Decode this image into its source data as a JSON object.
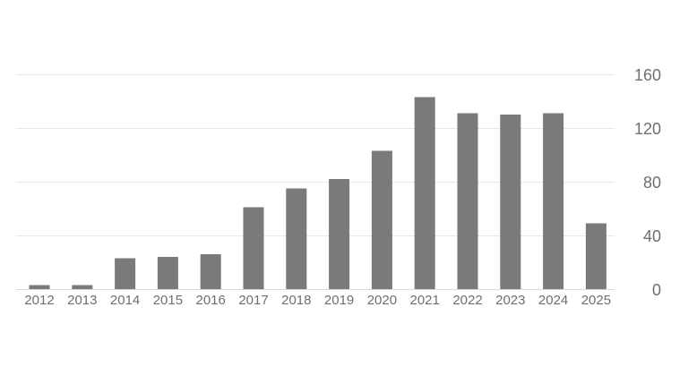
{
  "chart_data": {
    "type": "bar",
    "title": "",
    "xlabel": "",
    "ylabel": "",
    "categories": [
      "2012",
      "2013",
      "2014",
      "2015",
      "2016",
      "2017",
      "2018",
      "2019",
      "2020",
      "2021",
      "2022",
      "2023",
      "2024",
      "2025"
    ],
    "values": [
      3,
      3,
      23,
      24,
      26,
      61,
      75,
      82,
      103,
      143,
      131,
      130,
      131,
      49
    ],
    "ylim": [
      0,
      160
    ],
    "yticks": [
      0,
      40,
      80,
      120,
      160
    ],
    "y_axis_position": "right",
    "grid": true,
    "legend": "none",
    "bar_color": "#7a7a7a"
  }
}
